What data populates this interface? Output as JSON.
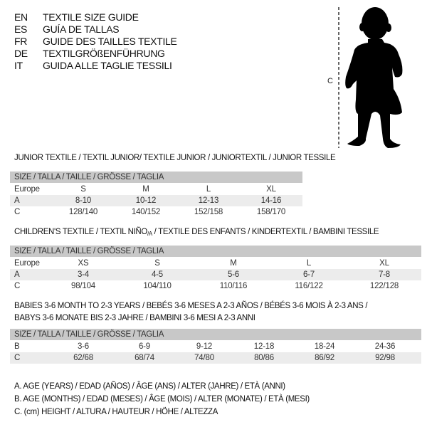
{
  "languages": [
    {
      "code": "EN",
      "title": "TEXTILE SIZE GUIDE"
    },
    {
      "code": "ES",
      "title": "GUÍA DE TALLAS"
    },
    {
      "code": "FR",
      "title": "GUIDE DES TAILLES TEXTILE"
    },
    {
      "code": "DE",
      "title": "TEXTILGRÖßENFÜHRUNG"
    },
    {
      "code": "IT",
      "title": "GUIDA ALLE TAGLIE TESSILI"
    }
  ],
  "figure": {
    "measure_label": "C",
    "icon": "child-silhouette"
  },
  "junior": {
    "title": "JUNIOR TEXTILE / TEXTIL JUNIOR/ TEXTILE JUNIOR / JUNIORTEXTIL / JUNIOR TESSILE",
    "header": "SIZE / TALLA / TAILLE / GRÖSSE / TAGLIA",
    "rows": [
      {
        "label": "Europe",
        "values": [
          "S",
          "M",
          "L",
          "XL"
        ]
      },
      {
        "label": "A",
        "values": [
          "8-10",
          "10-12",
          "12-13",
          "14-16"
        ]
      },
      {
        "label": "C",
        "values": [
          "128/140",
          "140/152",
          "152/158",
          "158/170"
        ]
      }
    ]
  },
  "children": {
    "title_main": "CHILDREN'S TEXTILE / TEXTIL NIÑO",
    "title_sub": "/A",
    "title_rest": " / TEXTILE DES ENFANTS / KINDERTEXTIL / BAMBINI TESSILE",
    "header": "SIZE / TALLA / TAILLE / GRÖSSE / TAGLIA",
    "rows": [
      {
        "label": "Europe",
        "values": [
          "XS",
          "S",
          "M",
          "L",
          "XL"
        ]
      },
      {
        "label": "A",
        "values": [
          "3-4",
          "4-5",
          "5-6",
          "6-7",
          "7-8"
        ]
      },
      {
        "label": "C",
        "values": [
          "98/104",
          "104/110",
          "110/116",
          "116/122",
          "122/128"
        ]
      }
    ]
  },
  "babies": {
    "title_line1": "BABIES 3-6 MONTH TO 2-3 YEARS / BEBÉS 3-6 MESES A 2-3 AÑOS / BÉBÉS 3-6 MOIS À 2-3 ANS /",
    "title_line2": "BABYS 3-6 MONATE BIS 2-3 JAHRE / BAMBINI 3-6 MESI A 2-3 ANNI",
    "header": "SIZE / TALLA / TAILLE / GRÖSSE / TAGLIA",
    "rows": [
      {
        "label": "B",
        "values": [
          "3-6",
          "6-9",
          "9-12",
          "12-18",
          "18-24",
          "24-36"
        ]
      },
      {
        "label": "C",
        "values": [
          "62/68",
          "68/74",
          "74/80",
          "80/86",
          "86/92",
          "92/98"
        ]
      }
    ]
  },
  "legend": [
    "A. AGE (YEARS) / EDAD (AÑOS) / ÂGE (ANS) / ALTER (JAHRE) / ETÀ (ANNI)",
    "B. AGE (MONTHS) / EDAD (MESES) / ÂGE (MOIS) / ALTER (MONATE) / ETÀ (MESI)",
    "C. (cm) HEIGHT / ALTURA / HAUTEUR / HÖHE / ALTEZZA"
  ]
}
